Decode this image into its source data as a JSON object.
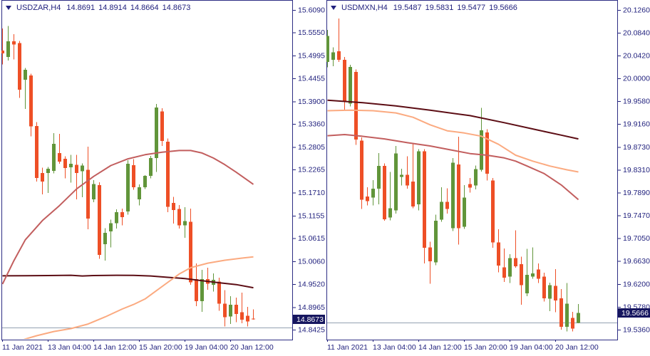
{
  "colors": {
    "background": "#ffffff",
    "axis_text": "#22227e",
    "border": "#2e2e84",
    "bull": "#61953a",
    "bear": "#ee4f26",
    "price_box_bg": "#16165f",
    "price_box_text": "#ffffff",
    "bid_line": "#93a1b1",
    "ma_dark": "#5c0d14",
    "ma_mid": "#c25e5e",
    "ma_salmon": "#fbaa80"
  },
  "candles_format": [
    "open",
    "high",
    "low",
    "close"
  ],
  "chart_data": [
    {
      "type": "candlestick",
      "symbol": "USDZAR",
      "timeframe": "H4",
      "header": {
        "symbol_label": "USDZAR,H4",
        "open": "14.8691",
        "high": "14.8914",
        "low": "14.8664",
        "close": "14.8673"
      },
      "y_axis": {
        "ticks": [
          "15.6090",
          "15.5550",
          "15.4995",
          "15.4455",
          "15.3900",
          "15.3360",
          "15.2805",
          "15.2265",
          "15.1710",
          "15.1155",
          "15.0615",
          "15.0060",
          "14.9520",
          "14.8965",
          "14.8425"
        ]
      },
      "x_axis": {
        "labels": [
          {
            "text": "11 Jan 2021",
            "index": 0
          },
          {
            "text": "13 Jan 04:00",
            "index": 8
          },
          {
            "text": "14 Jan 12:00",
            "index": 16
          },
          {
            "text": "15 Jan 20:00",
            "index": 24
          },
          {
            "text": "19 Jan 04:00",
            "index": 32
          },
          {
            "text": "20 Jan 12:00",
            "index": 40
          }
        ]
      },
      "candle_spacing": 8,
      "current_price": "14.8673",
      "bid_line_price": 14.8476,
      "candles": [
        [
          15.512,
          15.565,
          15.478,
          15.505
        ],
        [
          15.496,
          15.571,
          15.488,
          15.534
        ],
        [
          15.534,
          15.551,
          15.49,
          15.526
        ],
        [
          15.53,
          15.535,
          15.398,
          15.418
        ],
        [
          15.442,
          15.47,
          15.372,
          15.466
        ],
        [
          15.452,
          15.456,
          15.306,
          15.33
        ],
        [
          15.331,
          15.34,
          15.198,
          15.206
        ],
        [
          15.218,
          15.231,
          15.167,
          15.198
        ],
        [
          15.218,
          15.233,
          15.17,
          15.228
        ],
        [
          15.223,
          15.314,
          15.217,
          15.288
        ],
        [
          15.266,
          15.312,
          15.24,
          15.245
        ],
        [
          15.252,
          15.258,
          15.205,
          15.23
        ],
        [
          15.232,
          15.262,
          15.195,
          15.24
        ],
        [
          15.238,
          15.262,
          15.155,
          15.218
        ],
        [
          15.222,
          15.241,
          15.16,
          15.236
        ],
        [
          15.226,
          15.281,
          15.083,
          15.109
        ],
        [
          15.155,
          15.201,
          15.148,
          15.192
        ],
        [
          15.189,
          15.196,
          15.012,
          15.022
        ],
        [
          15.047,
          15.086,
          15.008,
          15.075
        ],
        [
          15.078,
          15.106,
          15.04,
          15.098
        ],
        [
          15.098,
          15.131,
          15.085,
          15.124
        ],
        [
          15.124,
          15.133,
          15.093,
          15.112
        ],
        [
          15.126,
          15.249,
          15.118,
          15.24
        ],
        [
          15.237,
          15.251,
          15.178,
          15.184
        ],
        [
          15.155,
          15.191,
          15.14,
          15.184
        ],
        [
          15.184,
          15.213,
          15.18,
          15.211
        ],
        [
          15.211,
          15.259,
          15.205,
          15.254
        ],
        [
          15.254,
          15.384,
          15.221,
          15.375
        ],
        [
          15.366,
          15.373,
          15.283,
          15.295
        ],
        [
          15.293,
          15.301,
          15.124,
          15.137
        ],
        [
          15.146,
          15.161,
          15.097,
          15.129
        ],
        [
          15.132,
          15.141,
          15.085,
          15.093
        ],
        [
          15.093,
          15.136,
          15.063,
          15.103
        ],
        [
          15.101,
          15.133,
          14.95,
          14.956
        ],
        [
          14.964,
          15.001,
          14.899,
          14.911
        ],
        [
          14.911,
          14.986,
          14.885,
          14.964
        ],
        [
          14.964,
          14.991,
          14.938,
          14.953
        ],
        [
          14.95,
          14.977,
          14.934,
          14.962
        ],
        [
          14.958,
          14.967,
          14.888,
          14.905
        ],
        [
          14.905,
          14.937,
          14.85,
          14.872
        ],
        [
          14.874,
          14.923,
          14.856,
          14.902
        ],
        [
          14.902,
          14.919,
          14.86,
          14.88
        ],
        [
          14.884,
          14.931,
          14.858,
          14.866
        ],
        [
          14.876,
          14.897,
          14.85,
          14.862
        ],
        [
          14.8691,
          14.8914,
          14.8664,
          14.8673
        ]
      ],
      "moving_averages": [
        {
          "name": "ma-dark-maroon",
          "color_key": "ma_dark",
          "points": [
            [
              0,
              14.9715
            ],
            [
              4,
              14.9718
            ],
            [
              8,
              14.9722
            ],
            [
              12,
              14.973
            ],
            [
              14,
              14.9712
            ],
            [
              16,
              14.9722
            ],
            [
              20,
              14.973
            ],
            [
              23,
              14.9725
            ],
            [
              26,
              14.9712
            ],
            [
              29,
              14.968
            ],
            [
              32,
              14.965
            ],
            [
              35,
              14.96
            ],
            [
              38,
              14.955
            ],
            [
              41,
              14.9505
            ],
            [
              44,
              14.943
            ]
          ]
        },
        {
          "name": "ma-medium-red",
          "color_key": "ma_mid",
          "points": [
            [
              0,
              14.952
            ],
            [
              2,
              15.008
            ],
            [
              4,
              15.058
            ],
            [
              7,
              15.104
            ],
            [
              10,
              15.14
            ],
            [
              13,
              15.18
            ],
            [
              16,
              15.21
            ],
            [
              19,
              15.236
            ],
            [
              22,
              15.252
            ],
            [
              25,
              15.262
            ],
            [
              28,
              15.268
            ],
            [
              31,
              15.272
            ],
            [
              33,
              15.272
            ],
            [
              35,
              15.266
            ],
            [
              37,
              15.254
            ],
            [
              39,
              15.238
            ],
            [
              41,
              15.22
            ],
            [
              44,
              15.191
            ]
          ]
        },
        {
          "name": "ma-salmon",
          "color_key": "ma_salmon",
          "points": [
            [
              3,
              14.816
            ],
            [
              6,
              14.828
            ],
            [
              9,
              14.838
            ],
            [
              12,
              14.845
            ],
            [
              15,
              14.856
            ],
            [
              18,
              14.873
            ],
            [
              21,
              14.892
            ],
            [
              23,
              14.903
            ],
            [
              25,
              14.916
            ],
            [
              27,
              14.936
            ],
            [
              29,
              14.956
            ],
            [
              31,
              14.976
            ],
            [
              33,
              14.991
            ],
            [
              36,
              15.002
            ],
            [
              39,
              15.009
            ],
            [
              42,
              15.014
            ],
            [
              44,
              15.017
            ]
          ]
        }
      ]
    },
    {
      "type": "candlestick",
      "symbol": "USDMXN",
      "timeframe": "H4",
      "header": {
        "symbol_label": "USDMXN,H4",
        "open": "19.5487",
        "high": "19.5831",
        "low": "19.5477",
        "close": "19.5666"
      },
      "y_axis": {
        "ticks": [
          "20.1260",
          "20.0840",
          "20.0420",
          "20.0000",
          "19.9580",
          "19.9160",
          "19.8730",
          "19.8310",
          "19.7890",
          "19.7470",
          "19.7050",
          "19.6630",
          "19.6200",
          "19.5780",
          "19.5360"
        ]
      },
      "x_axis": {
        "labels": [
          {
            "text": "11 Jan 2021",
            "index": 0
          },
          {
            "text": "13 Jan 04:00",
            "index": 8
          },
          {
            "text": "14 Jan 12:00",
            "index": 16
          },
          {
            "text": "15 Jan 20:00",
            "index": 24
          },
          {
            "text": "19 Jan 04:00",
            "index": 32
          },
          {
            "text": "20 Jan 12:00",
            "index": 40
          }
        ]
      },
      "candle_spacing": 8,
      "current_price": "19.5666",
      "bid_line_price": 19.549,
      "candles": [
        [
          20.03,
          20.089,
          20.02,
          20.078
        ],
        [
          20.034,
          20.057,
          20.022,
          20.048
        ],
        [
          20.05,
          20.11,
          20.03,
          20.034
        ],
        [
          20.034,
          20.039,
          19.94,
          19.958
        ],
        [
          19.953,
          20.025,
          19.948,
          20.021
        ],
        [
          20.012,
          20.016,
          19.877,
          19.887
        ],
        [
          19.885,
          19.891,
          19.759,
          19.776
        ],
        [
          19.782,
          19.799,
          19.765,
          19.773
        ],
        [
          19.78,
          19.812,
          19.765,
          19.796
        ],
        [
          19.796,
          19.862,
          19.767,
          19.838
        ],
        [
          19.838,
          19.843,
          19.737,
          19.74
        ],
        [
          19.743,
          19.827,
          19.738,
          19.76
        ],
        [
          19.756,
          19.875,
          19.75,
          19.861
        ],
        [
          19.818,
          19.833,
          19.802,
          19.822
        ],
        [
          19.822,
          19.856,
          19.796,
          19.802
        ],
        [
          19.809,
          19.878,
          19.76,
          19.763
        ],
        [
          19.767,
          19.869,
          19.756,
          19.865
        ],
        [
          19.865,
          19.869,
          19.658,
          19.687
        ],
        [
          19.688,
          19.698,
          19.621,
          19.662
        ],
        [
          19.66,
          19.748,
          19.655,
          19.737
        ],
        [
          19.739,
          19.799,
          19.735,
          19.772
        ],
        [
          19.772,
          19.797,
          19.75,
          19.759
        ],
        [
          19.723,
          19.853,
          19.718,
          19.844
        ],
        [
          19.841,
          19.892,
          19.693,
          19.723
        ],
        [
          19.726,
          19.803,
          19.722,
          19.78
        ],
        [
          19.805,
          19.816,
          19.789,
          19.798
        ],
        [
          19.802,
          19.839,
          19.795,
          19.832
        ],
        [
          19.831,
          19.945,
          19.828,
          19.904
        ],
        [
          19.9,
          19.906,
          19.811,
          19.824
        ],
        [
          19.811,
          19.816,
          19.687,
          19.697
        ],
        [
          19.697,
          19.721,
          19.642,
          19.654
        ],
        [
          19.651,
          19.686,
          19.624,
          19.632
        ],
        [
          19.634,
          19.675,
          19.622,
          19.668
        ],
        [
          19.668,
          19.719,
          19.65,
          19.653
        ],
        [
          19.657,
          19.671,
          19.582,
          19.618
        ],
        [
          19.603,
          19.685,
          19.598,
          19.637
        ],
        [
          19.634,
          19.688,
          19.63,
          19.64
        ],
        [
          19.647,
          19.658,
          19.622,
          19.63
        ],
        [
          19.634,
          19.641,
          19.588,
          19.594
        ],
        [
          19.593,
          19.623,
          19.57,
          19.618
        ],
        [
          19.617,
          19.648,
          19.568,
          19.59
        ],
        [
          19.594,
          19.611,
          19.536,
          19.541
        ],
        [
          19.541,
          19.622,
          19.533,
          19.584
        ],
        [
          19.558,
          19.569,
          19.533,
          19.538
        ],
        [
          19.5487,
          19.5831,
          19.5477,
          19.5666
        ]
      ],
      "moving_averages": [
        {
          "name": "ma-dark-maroon",
          "color_key": "ma_dark",
          "points": [
            [
              0,
              19.9595
            ],
            [
              6,
              19.955
            ],
            [
              12,
              19.949
            ],
            [
              18,
              19.941
            ],
            [
              25,
              19.931
            ],
            [
              31,
              19.918
            ],
            [
              37,
              19.904
            ],
            [
              41,
              19.895
            ],
            [
              44,
              19.888
            ]
          ]
        },
        {
          "name": "ma-salmon",
          "color_key": "ma_salmon",
          "points": [
            [
              0,
              19.94
            ],
            [
              4,
              19.941
            ],
            [
              8,
              19.94
            ],
            [
              12,
              19.936
            ],
            [
              15,
              19.928
            ],
            [
              18,
              19.914
            ],
            [
              21,
              19.903
            ],
            [
              24,
              19.899
            ],
            [
              27,
              19.893
            ],
            [
              30,
              19.878
            ],
            [
              33,
              19.858
            ],
            [
              36,
              19.847
            ],
            [
              39,
              19.838
            ],
            [
              42,
              19.831
            ],
            [
              44,
              19.827
            ]
          ]
        },
        {
          "name": "ma-medium-red",
          "color_key": "ma_mid",
          "points": [
            [
              0,
              19.894
            ],
            [
              3,
              19.896
            ],
            [
              6,
              19.893
            ],
            [
              10,
              19.888
            ],
            [
              14,
              19.881
            ],
            [
              18,
              19.875
            ],
            [
              22,
              19.867
            ],
            [
              25,
              19.861
            ],
            [
              28,
              19.858
            ],
            [
              31,
              19.853
            ],
            [
              33,
              19.847
            ],
            [
              35,
              19.838
            ],
            [
              38,
              19.824
            ],
            [
              41,
              19.803
            ],
            [
              44,
              19.776
            ]
          ]
        }
      ]
    }
  ]
}
